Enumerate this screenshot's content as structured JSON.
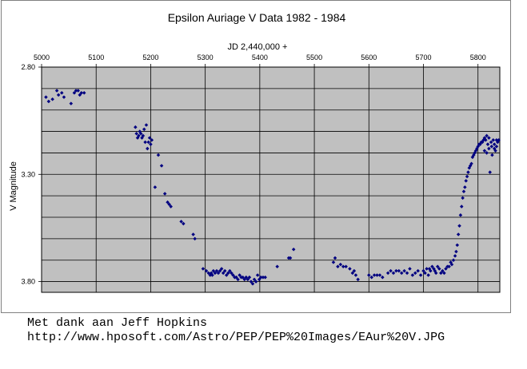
{
  "chart_data": {
    "type": "scatter",
    "title": "Epsilon Auriage V Data 1982 - 1984",
    "xlabel": "JD 2,440,000 +",
    "ylabel": "V Magnitude",
    "xlim": [
      5000,
      5840
    ],
    "ylim": [
      2.8,
      3.85
    ],
    "y_inverted": true,
    "x_axis_position": "top",
    "grid": true,
    "plot_background": "#c0c0c0",
    "marker_color": "#000080",
    "x_ticks": [
      "5000",
      "5100",
      "5200",
      "5300",
      "5400",
      "5500",
      "5600",
      "5700",
      "5800"
    ],
    "y_ticks": [
      "2.80",
      "3.30",
      "3.80"
    ],
    "points": [
      [
        5008,
        2.94
      ],
      [
        5013,
        2.96
      ],
      [
        5020,
        2.95
      ],
      [
        5028,
        2.91
      ],
      [
        5031,
        2.93
      ],
      [
        5037,
        2.92
      ],
      [
        5041,
        2.94
      ],
      [
        5054,
        2.97
      ],
      [
        5060,
        2.92
      ],
      [
        5063,
        2.91
      ],
      [
        5067,
        2.91
      ],
      [
        5070,
        2.93
      ],
      [
        5073,
        2.92
      ],
      [
        5078,
        2.92
      ],
      [
        5172,
        3.08
      ],
      [
        5174,
        3.11
      ],
      [
        5176,
        3.13
      ],
      [
        5178,
        3.12
      ],
      [
        5180,
        3.1
      ],
      [
        5182,
        3.11
      ],
      [
        5184,
        3.13
      ],
      [
        5186,
        3.12
      ],
      [
        5188,
        3.09
      ],
      [
        5190,
        3.15
      ],
      [
        5192,
        3.07
      ],
      [
        5194,
        3.18
      ],
      [
        5196,
        3.15
      ],
      [
        5198,
        3.13
      ],
      [
        5200,
        3.16
      ],
      [
        5202,
        3.14
      ],
      [
        5208,
        3.36
      ],
      [
        5214,
        3.21
      ],
      [
        5220,
        3.26
      ],
      [
        5226,
        3.39
      ],
      [
        5231,
        3.43
      ],
      [
        5234,
        3.44
      ],
      [
        5237,
        3.45
      ],
      [
        5256,
        3.52
      ],
      [
        5260,
        3.53
      ],
      [
        5278,
        3.58
      ],
      [
        5281,
        3.6
      ],
      [
        5296,
        3.74
      ],
      [
        5302,
        3.75
      ],
      [
        5306,
        3.76
      ],
      [
        5309,
        3.77
      ],
      [
        5311,
        3.76
      ],
      [
        5313,
        3.77
      ],
      [
        5315,
        3.75
      ],
      [
        5318,
        3.76
      ],
      [
        5321,
        3.75
      ],
      [
        5324,
        3.76
      ],
      [
        5327,
        3.75
      ],
      [
        5330,
        3.74
      ],
      [
        5333,
        3.76
      ],
      [
        5336,
        3.75
      ],
      [
        5339,
        3.77
      ],
      [
        5342,
        3.76
      ],
      [
        5345,
        3.75
      ],
      [
        5348,
        3.76
      ],
      [
        5351,
        3.77
      ],
      [
        5354,
        3.78
      ],
      [
        5357,
        3.78
      ],
      [
        5360,
        3.79
      ],
      [
        5363,
        3.77
      ],
      [
        5366,
        3.78
      ],
      [
        5369,
        3.78
      ],
      [
        5372,
        3.79
      ],
      [
        5375,
        3.78
      ],
      [
        5378,
        3.79
      ],
      [
        5381,
        3.78
      ],
      [
        5384,
        3.8
      ],
      [
        5387,
        3.81
      ],
      [
        5390,
        3.79
      ],
      [
        5393,
        3.8
      ],
      [
        5396,
        3.77
      ],
      [
        5399,
        3.79
      ],
      [
        5402,
        3.78
      ],
      [
        5406,
        3.78
      ],
      [
        5410,
        3.78
      ],
      [
        5432,
        3.73
      ],
      [
        5453,
        3.69
      ],
      [
        5456,
        3.69
      ],
      [
        5462,
        3.65
      ],
      [
        5535,
        3.71
      ],
      [
        5538,
        3.69
      ],
      [
        5543,
        3.73
      ],
      [
        5548,
        3.72
      ],
      [
        5553,
        3.73
      ],
      [
        5558,
        3.73
      ],
      [
        5565,
        3.74
      ],
      [
        5570,
        3.76
      ],
      [
        5573,
        3.75
      ],
      [
        5576,
        3.77
      ],
      [
        5580,
        3.79
      ],
      [
        5600,
        3.77
      ],
      [
        5605,
        3.78
      ],
      [
        5610,
        3.77
      ],
      [
        5615,
        3.77
      ],
      [
        5620,
        3.77
      ],
      [
        5625,
        3.78
      ],
      [
        5635,
        3.76
      ],
      [
        5640,
        3.75
      ],
      [
        5645,
        3.76
      ],
      [
        5650,
        3.75
      ],
      [
        5655,
        3.75
      ],
      [
        5660,
        3.76
      ],
      [
        5665,
        3.75
      ],
      [
        5670,
        3.76
      ],
      [
        5675,
        3.74
      ],
      [
        5680,
        3.77
      ],
      [
        5685,
        3.76
      ],
      [
        5690,
        3.75
      ],
      [
        5695,
        3.77
      ],
      [
        5700,
        3.75
      ],
      [
        5703,
        3.76
      ],
      [
        5706,
        3.74
      ],
      [
        5709,
        3.77
      ],
      [
        5711,
        3.74
      ],
      [
        5713,
        3.75
      ],
      [
        5716,
        3.73
      ],
      [
        5719,
        3.74
      ],
      [
        5721,
        3.75
      ],
      [
        5723,
        3.76
      ],
      [
        5726,
        3.73
      ],
      [
        5729,
        3.74
      ],
      [
        5732,
        3.76
      ],
      [
        5735,
        3.75
      ],
      [
        5738,
        3.76
      ],
      [
        5741,
        3.74
      ],
      [
        5744,
        3.73
      ],
      [
        5747,
        3.73
      ],
      [
        5750,
        3.71
      ],
      [
        5752,
        3.72
      ],
      [
        5755,
        3.7
      ],
      [
        5758,
        3.68
      ],
      [
        5760,
        3.66
      ],
      [
        5762,
        3.63
      ],
      [
        5764,
        3.58
      ],
      [
        5766,
        3.54
      ],
      [
        5768,
        3.49
      ],
      [
        5770,
        3.45
      ],
      [
        5772,
        3.41
      ],
      [
        5774,
        3.38
      ],
      [
        5776,
        3.36
      ],
      [
        5778,
        3.33
      ],
      [
        5780,
        3.31
      ],
      [
        5782,
        3.29
      ],
      [
        5784,
        3.27
      ],
      [
        5786,
        3.26
      ],
      [
        5788,
        3.25
      ],
      [
        5790,
        3.22
      ],
      [
        5792,
        3.21
      ],
      [
        5794,
        3.2
      ],
      [
        5796,
        3.19
      ],
      [
        5798,
        3.18
      ],
      [
        5800,
        3.17
      ],
      [
        5802,
        3.16
      ],
      [
        5804,
        3.16
      ],
      [
        5806,
        3.15
      ],
      [
        5808,
        3.15
      ],
      [
        5810,
        3.14
      ],
      [
        5812,
        3.13
      ],
      [
        5814,
        3.14
      ],
      [
        5816,
        3.12
      ],
      [
        5818,
        3.16
      ],
      [
        5820,
        3.13
      ],
      [
        5822,
        3.29
      ],
      [
        5824,
        3.15
      ],
      [
        5826,
        3.21
      ],
      [
        5828,
        3.14
      ],
      [
        5830,
        3.16
      ],
      [
        5832,
        3.19
      ],
      [
        5834,
        3.14
      ],
      [
        5836,
        3.15
      ],
      [
        5838,
        3.14
      ],
      [
        5812,
        3.19
      ],
      [
        5816,
        3.2
      ],
      [
        5820,
        3.18
      ],
      [
        5825,
        3.17
      ],
      [
        5830,
        3.18
      ],
      [
        5834,
        3.17
      ]
    ]
  },
  "caption": {
    "line1": "Met dank aan Jeff Hopkins",
    "line2": "http://www.hposoft.com/Astro/PEP/PEP%20Images/EAur%20V.JPG"
  }
}
